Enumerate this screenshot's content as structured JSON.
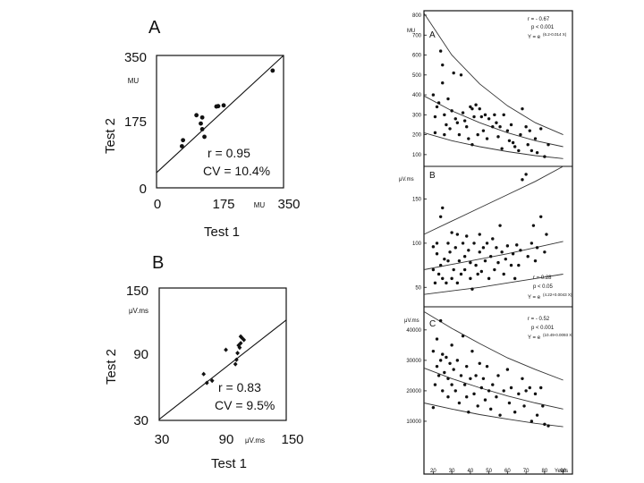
{
  "chart_data": [
    {
      "id": "left-A",
      "type": "scatter",
      "panel_label": "A",
      "xlabel": "Test 1",
      "ylabel": "Test 2",
      "x_unit": "MU",
      "y_unit": "MU",
      "xlim": [
        0,
        350
      ],
      "ylim": [
        0,
        350
      ],
      "x_ticks": [
        "0",
        "175",
        "350"
      ],
      "y_ticks": [
        "0",
        "175",
        "350"
      ],
      "annotations": [
        "r = 0.95",
        "CV = 10.4%"
      ],
      "fit_line": [
        [
          0,
          40
        ],
        [
          350,
          350
        ]
      ],
      "points": [
        [
          70,
          110
        ],
        [
          73,
          126
        ],
        [
          110,
          192
        ],
        [
          122,
          170
        ],
        [
          126,
          155
        ],
        [
          126,
          186
        ],
        [
          132,
          135
        ],
        [
          165,
          215
        ],
        [
          170,
          216
        ],
        [
          185,
          218
        ],
        [
          320,
          310
        ]
      ]
    },
    {
      "id": "left-B",
      "type": "scatter",
      "panel_label": "B",
      "xlabel": "Test 1",
      "ylabel": "Test 2",
      "x_unit": "μV.ms",
      "y_unit": "μV.ms",
      "xlim": [
        30,
        150
      ],
      "ylim": [
        30,
        150
      ],
      "x_ticks": [
        "30",
        "90",
        "150"
      ],
      "y_ticks": [
        "30",
        "90",
        "150"
      ],
      "annotations": [
        "r = 0.83",
        "CV = 9.5%"
      ],
      "fit_line": [
        [
          30,
          31
        ],
        [
          150,
          121
        ]
      ],
      "points": [
        [
          72,
          72
        ],
        [
          75,
          64
        ],
        [
          80,
          66
        ],
        [
          93,
          94
        ],
        [
          102,
          81
        ],
        [
          103,
          85
        ],
        [
          104,
          91
        ],
        [
          105,
          98
        ],
        [
          106,
          96
        ],
        [
          107,
          100
        ],
        [
          107,
          106
        ],
        [
          108,
          105
        ],
        [
          110,
          103
        ]
      ]
    },
    {
      "id": "right-A",
      "type": "scatter",
      "panel_label": "A",
      "x_ticks": [
        "20",
        "30",
        "40",
        "50",
        "60",
        "70",
        "80",
        "90"
      ],
      "x_unit": "Years",
      "xlim": [
        15,
        95
      ],
      "ylim": [
        50,
        800
      ],
      "y_unit": "MU",
      "y_ticks": [
        "100",
        "200",
        "300",
        "400",
        "500",
        "600",
        "700",
        "800"
      ],
      "annotations": [
        "r = - 0.67",
        "p < 0.001",
        "Y = e",
        "(6.2-0.014 X)"
      ],
      "curves": [
        {
          "name": "upper",
          "points": [
            [
              15,
              810
            ],
            [
              30,
              600
            ],
            [
              45,
              455
            ],
            [
              60,
              345
            ],
            [
              75,
              260
            ],
            [
              90,
              200
            ]
          ]
        },
        {
          "name": "middle",
          "points": [
            [
              15,
              395
            ],
            [
              30,
              320
            ],
            [
              45,
              260
            ],
            [
              60,
              210
            ],
            [
              75,
              170
            ],
            [
              90,
              140
            ]
          ]
        },
        {
          "name": "lower",
          "points": [
            [
              15,
              210
            ],
            [
              30,
              170
            ],
            [
              45,
              140
            ],
            [
              60,
              115
            ],
            [
              75,
              95
            ],
            [
              90,
              80
            ]
          ]
        }
      ],
      "points": [
        [
          20,
          400
        ],
        [
          21,
          210
        ],
        [
          21,
          290
        ],
        [
          22,
          340
        ],
        [
          23,
          360
        ],
        [
          24,
          620
        ],
        [
          25,
          550
        ],
        [
          25,
          460
        ],
        [
          26,
          300
        ],
        [
          26,
          200
        ],
        [
          27,
          250
        ],
        [
          28,
          380
        ],
        [
          29,
          230
        ],
        [
          30,
          320
        ],
        [
          31,
          510
        ],
        [
          32,
          280
        ],
        [
          33,
          260
        ],
        [
          34,
          200
        ],
        [
          35,
          500
        ],
        [
          36,
          310
        ],
        [
          37,
          270
        ],
        [
          38,
          240
        ],
        [
          39,
          180
        ],
        [
          40,
          340
        ],
        [
          41,
          330
        ],
        [
          41,
          150
        ],
        [
          42,
          290
        ],
        [
          43,
          350
        ],
        [
          44,
          200
        ],
        [
          45,
          330
        ],
        [
          46,
          290
        ],
        [
          47,
          220
        ],
        [
          48,
          300
        ],
        [
          49,
          180
        ],
        [
          50,
          280
        ],
        [
          52,
          240
        ],
        [
          53,
          300
        ],
        [
          54,
          260
        ],
        [
          55,
          190
        ],
        [
          56,
          240
        ],
        [
          57,
          130
        ],
        [
          58,
          300
        ],
        [
          60,
          220
        ],
        [
          61,
          170
        ],
        [
          62,
          250
        ],
        [
          63,
          160
        ],
        [
          64,
          140
        ],
        [
          66,
          120
        ],
        [
          67,
          200
        ],
        [
          68,
          330
        ],
        [
          70,
          240
        ],
        [
          71,
          150
        ],
        [
          72,
          220
        ],
        [
          73,
          120
        ],
        [
          75,
          180
        ],
        [
          76,
          110
        ],
        [
          78,
          230
        ],
        [
          80,
          90
        ],
        [
          82,
          150
        ]
      ]
    },
    {
      "id": "right-B",
      "type": "scatter",
      "panel_label": "B",
      "y_unit": "μV.ms",
      "x_ticks": [
        "20",
        "30",
        "40",
        "50",
        "60",
        "70",
        "80",
        "90"
      ],
      "xlim": [
        15,
        95
      ],
      "ylim": [
        30,
        185
      ],
      "y_ticks": [
        "50",
        "100",
        "150"
      ],
      "annotations": [
        "r = 0.28",
        "p < 0.05",
        "Y = e",
        "(4.22+0.0043 X)"
      ],
      "curves": [
        {
          "name": "upper",
          "points": [
            [
              15,
              110
            ],
            [
              30,
              125
            ],
            [
              45,
              140
            ],
            [
              60,
              155
            ],
            [
              75,
              170
            ],
            [
              90,
              187
            ]
          ]
        },
        {
          "name": "middle",
          "points": [
            [
              15,
              70
            ],
            [
              30,
              76
            ],
            [
              45,
              82
            ],
            [
              60,
              88
            ],
            [
              75,
              95
            ],
            [
              90,
              102
            ]
          ]
        },
        {
          "name": "lower",
          "points": [
            [
              15,
              42
            ],
            [
              30,
              46
            ],
            [
              45,
              50
            ],
            [
              60,
              55
            ],
            [
              75,
              60
            ],
            [
              90,
              65
            ]
          ]
        }
      ],
      "points": [
        [
          20,
          96
        ],
        [
          20,
          70
        ],
        [
          21,
          55
        ],
        [
          22,
          88
        ],
        [
          22,
          100
        ],
        [
          23,
          65
        ],
        [
          24,
          130
        ],
        [
          24,
          75
        ],
        [
          25,
          140
        ],
        [
          25,
          60
        ],
        [
          26,
          82
        ],
        [
          27,
          55
        ],
        [
          28,
          100
        ],
        [
          28,
          80
        ],
        [
          29,
          90
        ],
        [
          30,
          112
        ],
        [
          30,
          60
        ],
        [
          31,
          70
        ],
        [
          32,
          95
        ],
        [
          33,
          110
        ],
        [
          33,
          55
        ],
        [
          34,
          80
        ],
        [
          35,
          65
        ],
        [
          36,
          100
        ],
        [
          37,
          85
        ],
        [
          37,
          70
        ],
        [
          38,
          108
        ],
        [
          39,
          92
        ],
        [
          40,
          60
        ],
        [
          40,
          78
        ],
        [
          41,
          48
        ],
        [
          42,
          100
        ],
        [
          43,
          75
        ],
        [
          44,
          65
        ],
        [
          45,
          90
        ],
        [
          45,
          110
        ],
        [
          46,
          68
        ],
        [
          47,
          95
        ],
        [
          48,
          80
        ],
        [
          49,
          100
        ],
        [
          50,
          60
        ],
        [
          51,
          85
        ],
        [
          52,
          105
        ],
        [
          53,
          70
        ],
        [
          54,
          95
        ],
        [
          55,
          78
        ],
        [
          56,
          120
        ],
        [
          57,
          90
        ],
        [
          58,
          65
        ],
        [
          59,
          82
        ],
        [
          60,
          97
        ],
        [
          62,
          75
        ],
        [
          63,
          88
        ],
        [
          64,
          60
        ],
        [
          65,
          98
        ],
        [
          66,
          75
        ],
        [
          67,
          92
        ],
        [
          68,
          172
        ],
        [
          70,
          178
        ],
        [
          71,
          85
        ],
        [
          73,
          100
        ],
        [
          74,
          120
        ],
        [
          75,
          80
        ],
        [
          76,
          95
        ],
        [
          78,
          130
        ],
        [
          80,
          90
        ],
        [
          81,
          110
        ]
      ]
    },
    {
      "id": "right-C",
      "type": "scatter",
      "panel_label": "C",
      "y_unit": "μV.ms",
      "x_ticks": [
        "20",
        "30",
        "40",
        "50",
        "60",
        "70",
        "80",
        "90"
      ],
      "x_unit": "Years",
      "xlim": [
        15,
        95
      ],
      "ylim": [
        0,
        47000
      ],
      "y_ticks": [
        "10000",
        "20000",
        "30000",
        "40000"
      ],
      "annotations": [
        "r = - 0.52",
        "p < 0.001",
        "Y = e",
        "(10.49-0.0093 X)"
      ],
      "curves": [
        {
          "name": "upper",
          "points": [
            [
              15,
              46000
            ],
            [
              30,
              40500
            ],
            [
              45,
              35500
            ],
            [
              60,
              30800
            ],
            [
              75,
              27000
            ],
            [
              90,
              23500
            ]
          ]
        },
        {
          "name": "middle",
          "points": [
            [
              15,
              27500
            ],
            [
              30,
              24000
            ],
            [
              45,
              21000
            ],
            [
              60,
              18300
            ],
            [
              75,
              16000
            ],
            [
              90,
              14000
            ]
          ]
        },
        {
          "name": "lower",
          "points": [
            [
              15,
              16000
            ],
            [
              30,
              14000
            ],
            [
              45,
              12200
            ],
            [
              60,
              10700
            ],
            [
              75,
              9300
            ],
            [
              90,
              8200
            ]
          ]
        }
      ],
      "points": [
        [
          20,
          33000
        ],
        [
          20,
          14500
        ],
        [
          21,
          22000
        ],
        [
          22,
          28000
        ],
        [
          22,
          37000
        ],
        [
          23,
          25000
        ],
        [
          24,
          43000
        ],
        [
          24,
          30000
        ],
        [
          25,
          20000
        ],
        [
          25,
          32000
        ],
        [
          26,
          26000
        ],
        [
          27,
          31000
        ],
        [
          28,
          24000
        ],
        [
          28,
          18000
        ],
        [
          29,
          29000
        ],
        [
          30,
          35000
        ],
        [
          30,
          22000
        ],
        [
          31,
          27000
        ],
        [
          32,
          20000
        ],
        [
          33,
          30000
        ],
        [
          34,
          16000
        ],
        [
          35,
          25000
        ],
        [
          36,
          38000
        ],
        [
          37,
          22000
        ],
        [
          38,
          18000
        ],
        [
          38,
          28000
        ],
        [
          39,
          13000
        ],
        [
          40,
          24000
        ],
        [
          41,
          33000
        ],
        [
          42,
          19000
        ],
        [
          43,
          25000
        ],
        [
          44,
          15000
        ],
        [
          45,
          29000
        ],
        [
          46,
          21000
        ],
        [
          47,
          24000
        ],
        [
          48,
          17000
        ],
        [
          49,
          28000
        ],
        [
          50,
          20000
        ],
        [
          51,
          14000
        ],
        [
          52,
          22000
        ],
        [
          54,
          18000
        ],
        [
          55,
          25000
        ],
        [
          56,
          12000
        ],
        [
          58,
          20000
        ],
        [
          60,
          27000
        ],
        [
          61,
          16000
        ],
        [
          62,
          21000
        ],
        [
          64,
          13000
        ],
        [
          66,
          19000
        ],
        [
          68,
          24000
        ],
        [
          69,
          15000
        ],
        [
          70,
          20000
        ],
        [
          72,
          21000
        ],
        [
          73,
          10000
        ],
        [
          75,
          19000
        ],
        [
          76,
          12000
        ],
        [
          78,
          21000
        ],
        [
          79,
          15000
        ],
        [
          80,
          9000
        ],
        [
          82,
          8500
        ]
      ]
    }
  ]
}
